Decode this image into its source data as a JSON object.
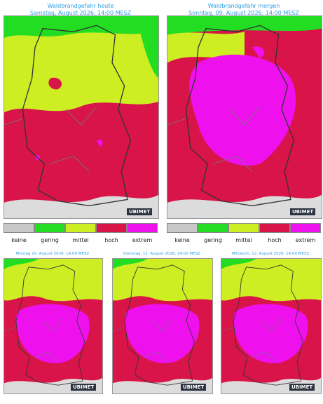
{
  "maps": [
    {
      "title": "Waldbrandgefahr heute",
      "subtitle": "Samstag, August 2026, 14:00 MESZ"
    },
    {
      "title": "Waldbrandgefahr morgen",
      "subtitle": "Sonntag, 09. August 2026, 14:00 MESZ"
    },
    {
      "title": "Montag 10. August 2026, 14:00 MESZ"
    },
    {
      "title": "Dienstag, 11. August 2026, 14:00 MESZ"
    },
    {
      "title": "Mittwoch, 12. August 2026, 14:00 MESZ"
    }
  ],
  "legend": [
    {
      "label": "keine",
      "color": "#c8c8c8"
    },
    {
      "label": "gering",
      "color": "#22dd22"
    },
    {
      "label": "mittel",
      "color": "#ccee22"
    },
    {
      "label": "hoch",
      "color": "#d81448"
    },
    {
      "label": "extrem",
      "color": "#ee11ee"
    }
  ],
  "logo": "UBIMET"
}
